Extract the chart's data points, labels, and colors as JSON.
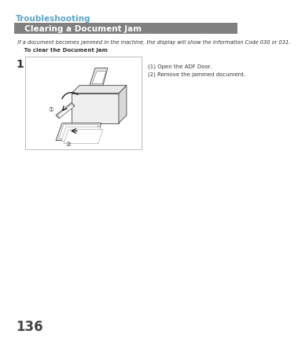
{
  "title_troubleshooting": "Troubleshooting",
  "title_color": "#5BA4C8",
  "header_text": "  Clearing a Document Jam",
  "header_bg": "#808080",
  "header_text_color": "#FFFFFF",
  "body_text": "  If a document becomes jammed in the machine, the display will show the Information Code 030 or 031.",
  "subtitle": "     To clear the Document Jam",
  "step_number": "1",
  "instruction1": "(1) Open the ADF Door.",
  "instruction2": "(2) Remove the jammed document.",
  "page_number": "136",
  "bg_color": "#FFFFFF",
  "body_text_color": "#333333",
  "box_border_color": "#BBBBBB",
  "font_size_title": 7.5,
  "font_size_header": 7.5,
  "font_size_body": 4.8,
  "font_size_subtitle": 5.0,
  "font_size_step": 10,
  "font_size_instruction": 5.0,
  "font_size_page": 12
}
